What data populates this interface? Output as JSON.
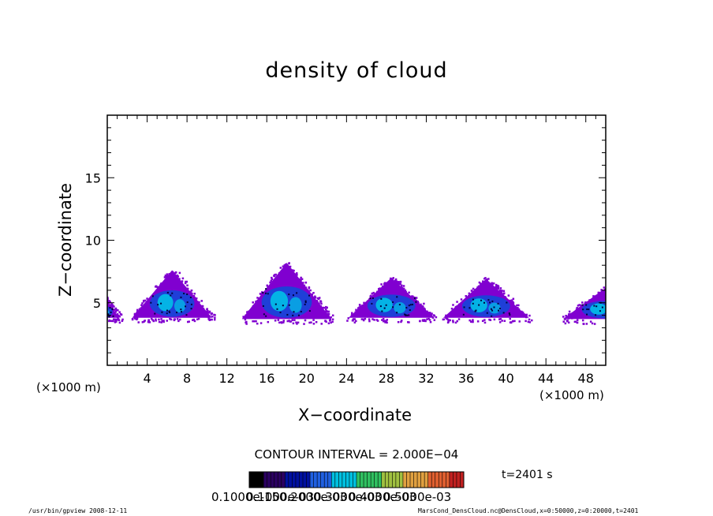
{
  "chart_data": {
    "type": "heatmap",
    "title": "density of cloud",
    "xlabel": "X−coordinate",
    "ylabel": "Z−coordinate",
    "x_unit": "(×1000 m)",
    "y_unit": "(×1000 m)",
    "xlim": [
      0,
      50
    ],
    "ylim": [
      0,
      20
    ],
    "x_ticks": [
      4,
      8,
      12,
      16,
      20,
      24,
      28,
      32,
      36,
      40,
      44,
      48
    ],
    "y_ticks": [
      5,
      10,
      15
    ],
    "cloud_cells": [
      {
        "x_center": 6.5,
        "x_halfwidth": 4.0,
        "base": 3.8,
        "top": 7.6
      },
      {
        "x_center": 18.0,
        "x_halfwidth": 4.5,
        "base": 3.7,
        "top": 8.2
      },
      {
        "x_center": 28.5,
        "x_halfwidth": 4.3,
        "base": 3.8,
        "top": 7.0
      },
      {
        "x_center": 38.0,
        "x_halfwidth": 4.3,
        "base": 3.8,
        "top": 6.9
      },
      {
        "x_center": 50.0,
        "x_halfwidth": 4.3,
        "base": 3.7,
        "top": 6.2
      },
      {
        "x_center": -0.3,
        "x_halfwidth": 1.5,
        "base": 3.8,
        "top": 5.4
      }
    ],
    "contour_interval": "CONTOUR INTERVAL = 2.000E−04",
    "colorbar_labels": [
      "0.1000e-15",
      "0.1000e-03",
      "0.2000e-03",
      "0.3000e-03",
      "0.4000e-03",
      "0.5000e-03"
    ],
    "colors": {
      "purple": "#8000d0",
      "blue": "#1f3fd8",
      "cyan": "#00c8e8",
      "green": "#30c060",
      "orange": "#e08030",
      "red": "#d02020"
    }
  },
  "time_label": "t=2401 s",
  "footer": {
    "left": "/usr/bin/gpview   2008-12-11",
    "right": "MarsCond_DensCloud.nc@DensCloud,x=0:50000,z=0:20000,t=2401"
  }
}
